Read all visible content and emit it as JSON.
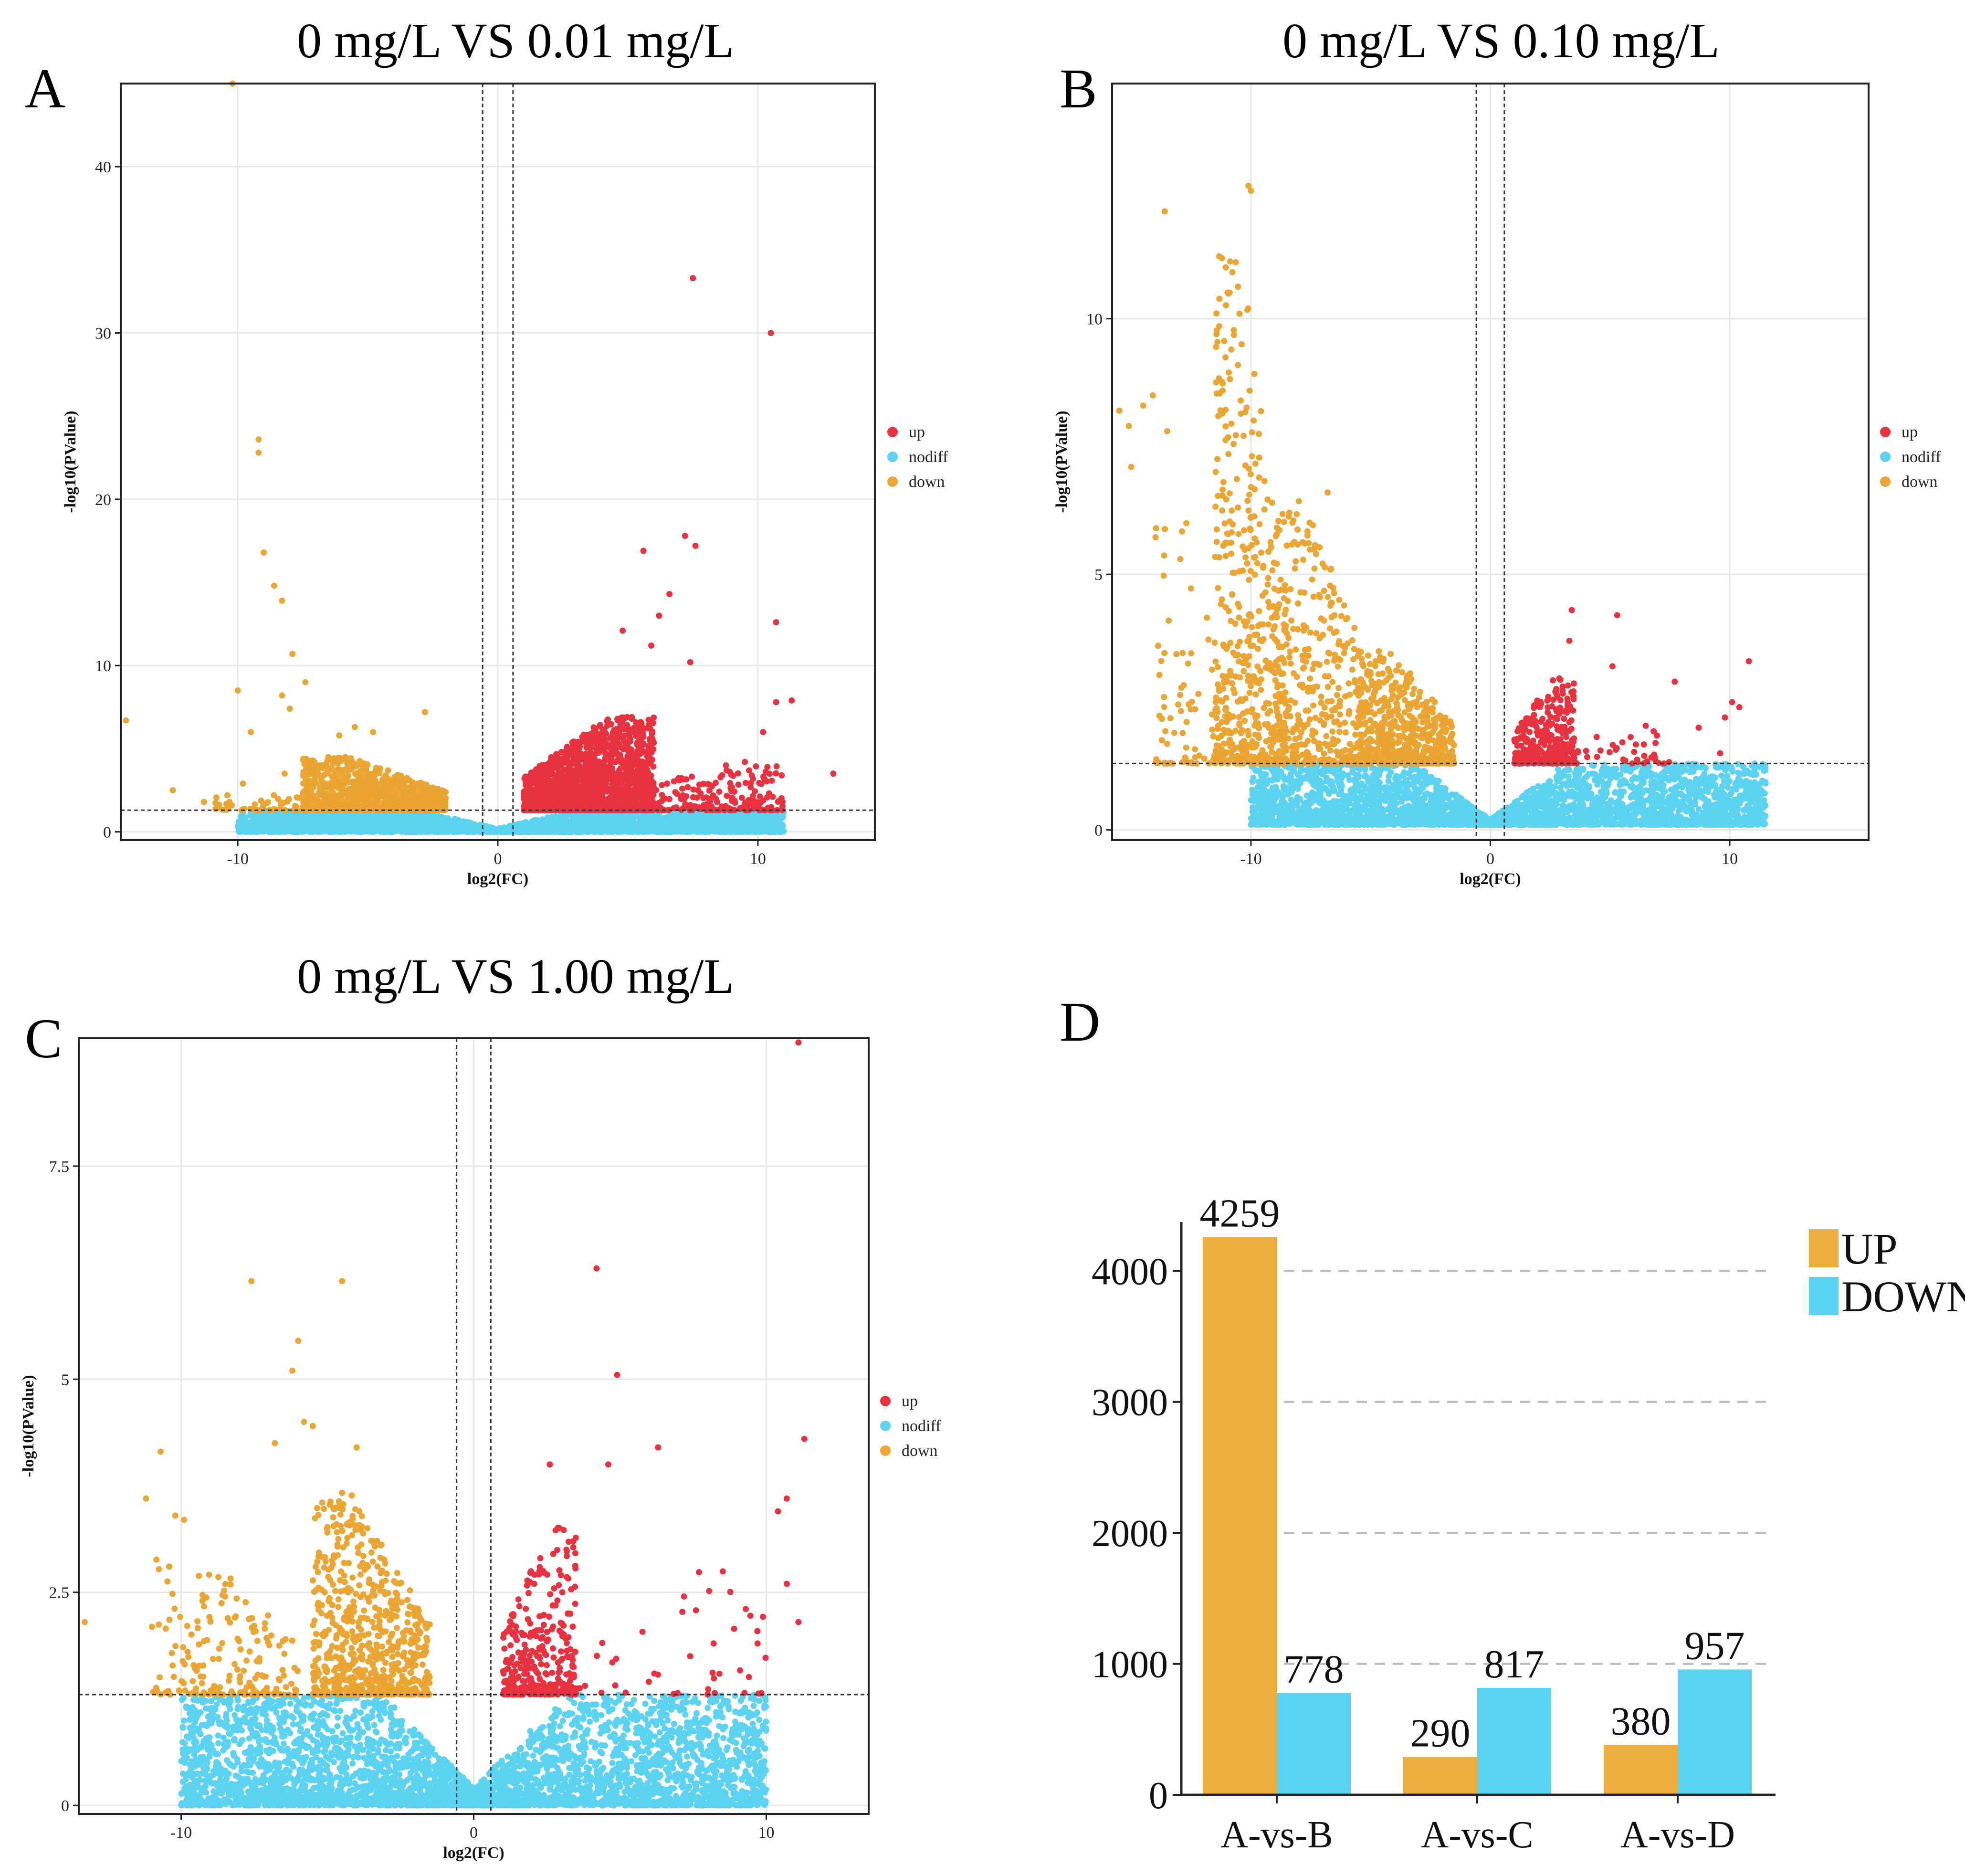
{
  "colors": {
    "up": "#e8323f",
    "nodiff": "#5ad2f0",
    "down": "#eba532",
    "bar_up": "#edad3e",
    "bar_down": "#5ad3f2"
  },
  "chart_data": [
    {
      "panel": "A",
      "type": "scatter",
      "title": "0 mg/L VS 0.01 mg/L",
      "xlabel": "log2(FC)",
      "ylabel": "-log10(PValue)",
      "xlim": [
        -14.5,
        14.5
      ],
      "ylim": [
        -0.5,
        45
      ],
      "xticks": [
        "-10",
        "0",
        "10"
      ],
      "xtick_values": [
        -10,
        0,
        10
      ],
      "yticks": [
        "0",
        "10",
        "20",
        "30",
        "40"
      ],
      "ytick_values": [
        0,
        10,
        20,
        30,
        40
      ],
      "fc_cutoffs": [
        -0.585,
        0.585
      ],
      "p_cutoff": 1.3,
      "legend": [
        "up",
        "nodiff",
        "down"
      ],
      "series": [
        {
          "name": "down",
          "points": [
            [
              -10.2,
              45
            ],
            [
              -9.2,
              23.6
            ],
            [
              -9.2,
              22.8
            ],
            [
              -9.0,
              16.8
            ],
            [
              -8.6,
              14.8
            ],
            [
              -8.3,
              13.9
            ],
            [
              -7.9,
              10.7
            ],
            [
              -7.4,
              9
            ],
            [
              -14.3,
              6.7
            ],
            [
              -10.0,
              8.5
            ],
            [
              -9.5,
              6
            ],
            [
              -8.3,
              8.2
            ],
            [
              -8.0,
              7.4
            ],
            [
              -5.5,
              6.3
            ],
            [
              -2.8,
              7.2
            ],
            [
              -6.1,
              5.8
            ],
            [
              -4.8,
              6
            ],
            [
              -12.5,
              2.5
            ],
            [
              -10.4,
              2.2
            ],
            [
              -9.8,
              2.9
            ],
            [
              -8.2,
              3.5
            ],
            [
              -11.3,
              1.8
            ]
          ]
        },
        {
          "name": "up",
          "points": [
            [
              7.5,
              33.3
            ],
            [
              10.5,
              30
            ],
            [
              10.7,
              12.6
            ],
            [
              7.2,
              17.8
            ],
            [
              7.6,
              17.2
            ],
            [
              5.6,
              16.9
            ],
            [
              6.6,
              14.3
            ],
            [
              7.4,
              10.2
            ],
            [
              10.7,
              7.8
            ],
            [
              11.3,
              7.9
            ],
            [
              12.9,
              3.5
            ],
            [
              9.5,
              4.2
            ],
            [
              8.8,
              3.7
            ],
            [
              10.2,
              6
            ],
            [
              6.2,
              13
            ],
            [
              5.9,
              11.2
            ],
            [
              4.8,
              12.1
            ]
          ]
        }
      ],
      "clouds": {
        "down": [
          [
            -7.5,
            -2.0,
            1.3,
            4.5,
            1200
          ],
          [
            -11,
            -2,
            1.3,
            2.3,
            120
          ]
        ],
        "up": [
          [
            1.0,
            6.0,
            1.3,
            7.0,
            1800
          ],
          [
            4,
            11,
            1.3,
            4.0,
            250
          ]
        ],
        "nodiff": [
          [
            -10,
            11,
            0,
            1.3,
            3200
          ]
        ]
      }
    },
    {
      "panel": "B",
      "type": "scatter",
      "title": "0 mg/L VS 0.10 mg/L",
      "xlabel": "log2(FC)",
      "ylabel": "-log10(PValue)",
      "xlim": [
        -15.8,
        15.8
      ],
      "ylim": [
        -0.2,
        14.6
      ],
      "xticks": [
        "-10",
        "0",
        "10"
      ],
      "xtick_values": [
        -10,
        0,
        10
      ],
      "yticks": [
        "0",
        "5",
        "10"
      ],
      "ytick_values": [
        0,
        5,
        10
      ],
      "fc_cutoffs": [
        -0.585,
        0.585
      ],
      "p_cutoff": 1.3,
      "legend": [
        "up",
        "nodiff",
        "down"
      ],
      "series": [
        {
          "name": "down",
          "points": [
            [
              -10.1,
              12.6
            ],
            [
              -10.0,
              12.5
            ],
            [
              -13.6,
              12.1
            ],
            [
              -15.5,
              8.2
            ],
            [
              -15.1,
              7.9
            ],
            [
              -14.5,
              8.3
            ],
            [
              -15.0,
              7.1
            ],
            [
              -14.1,
              8.5
            ],
            [
              -13.5,
              7.8
            ],
            [
              -12.7,
              6.0
            ],
            [
              -6.8,
              6.6
            ],
            [
              -13.2,
              1.9
            ]
          ]
        },
        {
          "name": "up",
          "points": [
            [
              3.4,
              4.3
            ],
            [
              5.3,
              4.2
            ],
            [
              3.3,
              3.7
            ],
            [
              5.1,
              3.2
            ],
            [
              7.7,
              2.9
            ],
            [
              10.8,
              3.3
            ],
            [
              10.1,
              2.5
            ],
            [
              10.4,
              2.4
            ],
            [
              9.8,
              2.2
            ],
            [
              8.7,
              2.0
            ],
            [
              6.9,
              1.7
            ],
            [
              9.6,
              1.5
            ]
          ]
        }
      ],
      "clouds": {
        "down": [
          [
            -11.5,
            -8.5,
            1.3,
            11.5,
            500
          ],
          [
            -9,
            -5,
            1.3,
            6.5,
            400
          ],
          [
            -5.5,
            -1.5,
            1.3,
            3.5,
            600
          ],
          [
            -14,
            -11,
            1.3,
            6,
            90
          ]
        ],
        "up": [
          [
            1.0,
            3.5,
            1.3,
            3.0,
            320
          ],
          [
            3.5,
            7.5,
            1.3,
            2.2,
            40
          ]
        ],
        "nodiff": [
          [
            -10,
            11.5,
            0.1,
            1.3,
            3200
          ]
        ]
      }
    },
    {
      "panel": "C",
      "type": "scatter",
      "title": "0 mg/L VS 1.00 mg/L",
      "xlabel": "log2(FC)",
      "ylabel": "-log10(PValue)",
      "xlim": [
        -13.5,
        13.5
      ],
      "ylim": [
        -0.1,
        9.0
      ],
      "xticks": [
        "-10",
        "0",
        "10"
      ],
      "xtick_values": [
        -10,
        0,
        10
      ],
      "yticks": [
        "0",
        "2.5",
        "5",
        "7.5"
      ],
      "ytick_values": [
        0,
        2.5,
        5,
        7.5
      ],
      "fc_cutoffs": [
        -0.585,
        0.585
      ],
      "p_cutoff": 1.3,
      "legend": [
        "up",
        "nodiff",
        "down"
      ],
      "series": [
        {
          "name": "down",
          "points": [
            [
              -7.6,
              6.15
            ],
            [
              -4.5,
              6.15
            ],
            [
              -6.0,
              5.45
            ],
            [
              -6.2,
              5.1
            ],
            [
              -5.8,
              4.5
            ],
            [
              -5.5,
              4.45
            ],
            [
              -6.8,
              4.25
            ],
            [
              -4.0,
              4.2
            ],
            [
              -10.7,
              4.15
            ],
            [
              -11.2,
              3.6
            ],
            [
              -13.3,
              2.15
            ],
            [
              -10.2,
              3.4
            ],
            [
              -9.9,
              3.35
            ]
          ]
        },
        {
          "name": "up",
          "points": [
            [
              11.1,
              8.95
            ],
            [
              4.2,
              6.3
            ],
            [
              4.9,
              5.05
            ],
            [
              6.3,
              4.2
            ],
            [
              11.3,
              4.3
            ],
            [
              4.6,
              4.0
            ],
            [
              2.6,
              4.0
            ],
            [
              10.7,
              3.6
            ],
            [
              10.4,
              3.45
            ],
            [
              11.1,
              2.15
            ],
            [
              10.7,
              2.6
            ],
            [
              7.4,
              1.75
            ],
            [
              8.2,
              1.9
            ],
            [
              9.7,
              1.9
            ]
          ]
        }
      ],
      "clouds": {
        "down": [
          [
            -5.5,
            -1.5,
            1.3,
            3.7,
            700
          ],
          [
            -11,
            -6,
            1.3,
            3.0,
            180
          ]
        ],
        "up": [
          [
            1.0,
            3.5,
            1.3,
            3.3,
            320
          ],
          [
            3.5,
            10,
            1.3,
            2.8,
            40
          ]
        ],
        "nodiff": [
          [
            -10,
            10,
            0,
            1.3,
            3800
          ]
        ]
      }
    },
    {
      "panel": "D",
      "type": "bar",
      "categories": [
        "A-vs-B",
        "A-vs-C",
        "A-vs-D"
      ],
      "series": [
        {
          "name": "UP",
          "values": [
            4259,
            290,
            380
          ]
        },
        {
          "name": "DOWN",
          "values": [
            778,
            817,
            957
          ]
        }
      ],
      "ylim": [
        0,
        4300
      ],
      "yticks": [
        "0",
        "1000",
        "2000",
        "3000",
        "4000"
      ],
      "ytick_values": [
        0,
        1000,
        2000,
        3000,
        4000
      ],
      "grid": "dashed",
      "legend": [
        "UP",
        "DOWN"
      ]
    }
  ]
}
